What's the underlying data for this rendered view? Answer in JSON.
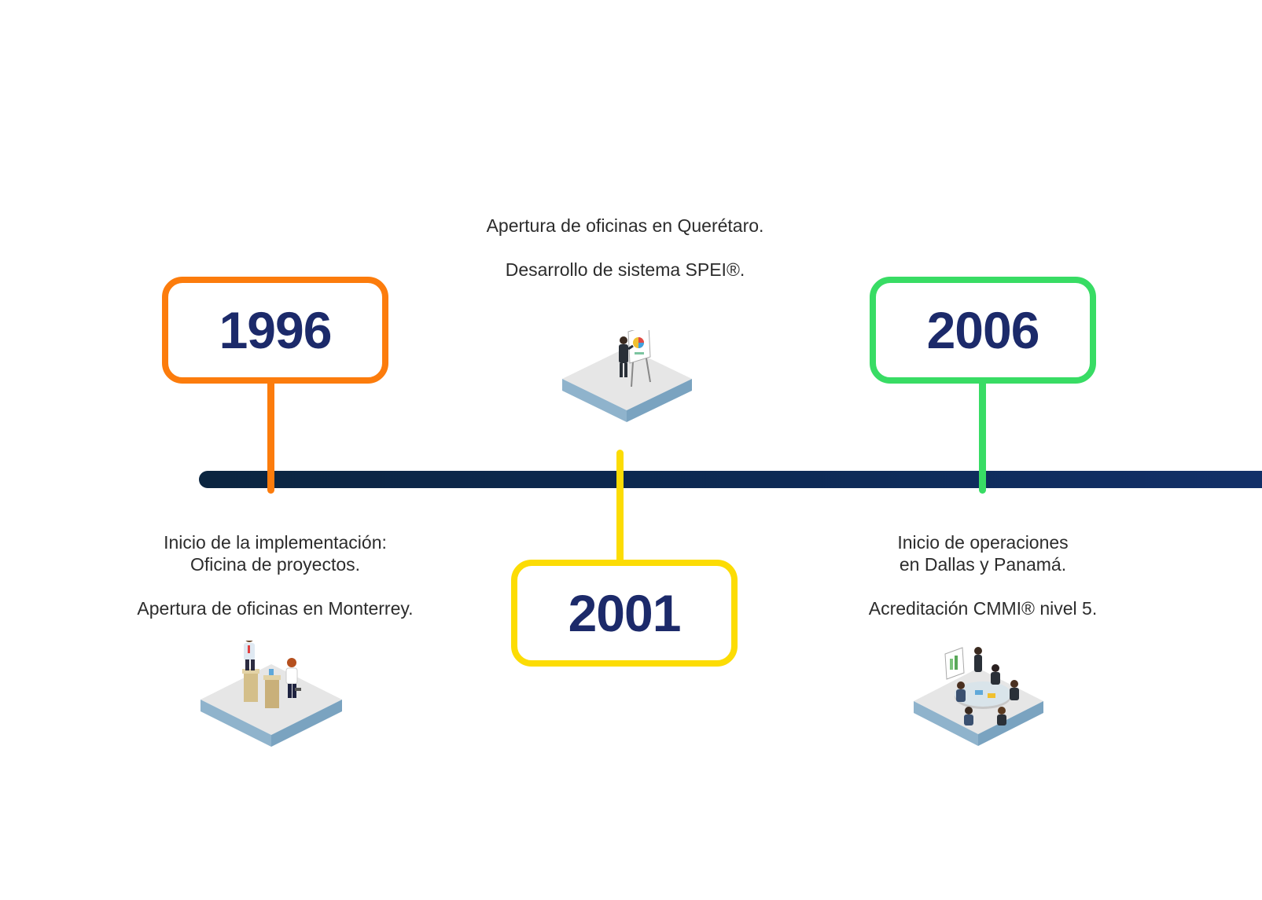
{
  "colors": {
    "axis": "#0d2a55",
    "year_text": "#1c2a6a",
    "milestone_1996": "#fc7c0c",
    "milestone_2001": "#fcdc04",
    "milestone_2006": "#38dc64"
  },
  "milestones": [
    {
      "year": "1996",
      "lines_before_gap": [
        "Inicio de la implementación:",
        "Oficina de proyectos."
      ],
      "lines_after_gap": [
        "Apertura de oficinas en Monterrey."
      ],
      "illustration": "office-meeting-illustration"
    },
    {
      "year": "2001",
      "lines_before_gap": [
        "Apertura de oficinas en Querétaro."
      ],
      "lines_after_gap": [
        "Desarrollo de sistema SPEI®."
      ],
      "illustration": "presentation-illustration"
    },
    {
      "year": "2006",
      "lines_before_gap": [
        "Inicio de operaciones",
        "en Dallas y Panamá."
      ],
      "lines_after_gap": [
        "Acreditación CMMI® nivel 5."
      ],
      "illustration": "conference-room-illustration"
    }
  ]
}
